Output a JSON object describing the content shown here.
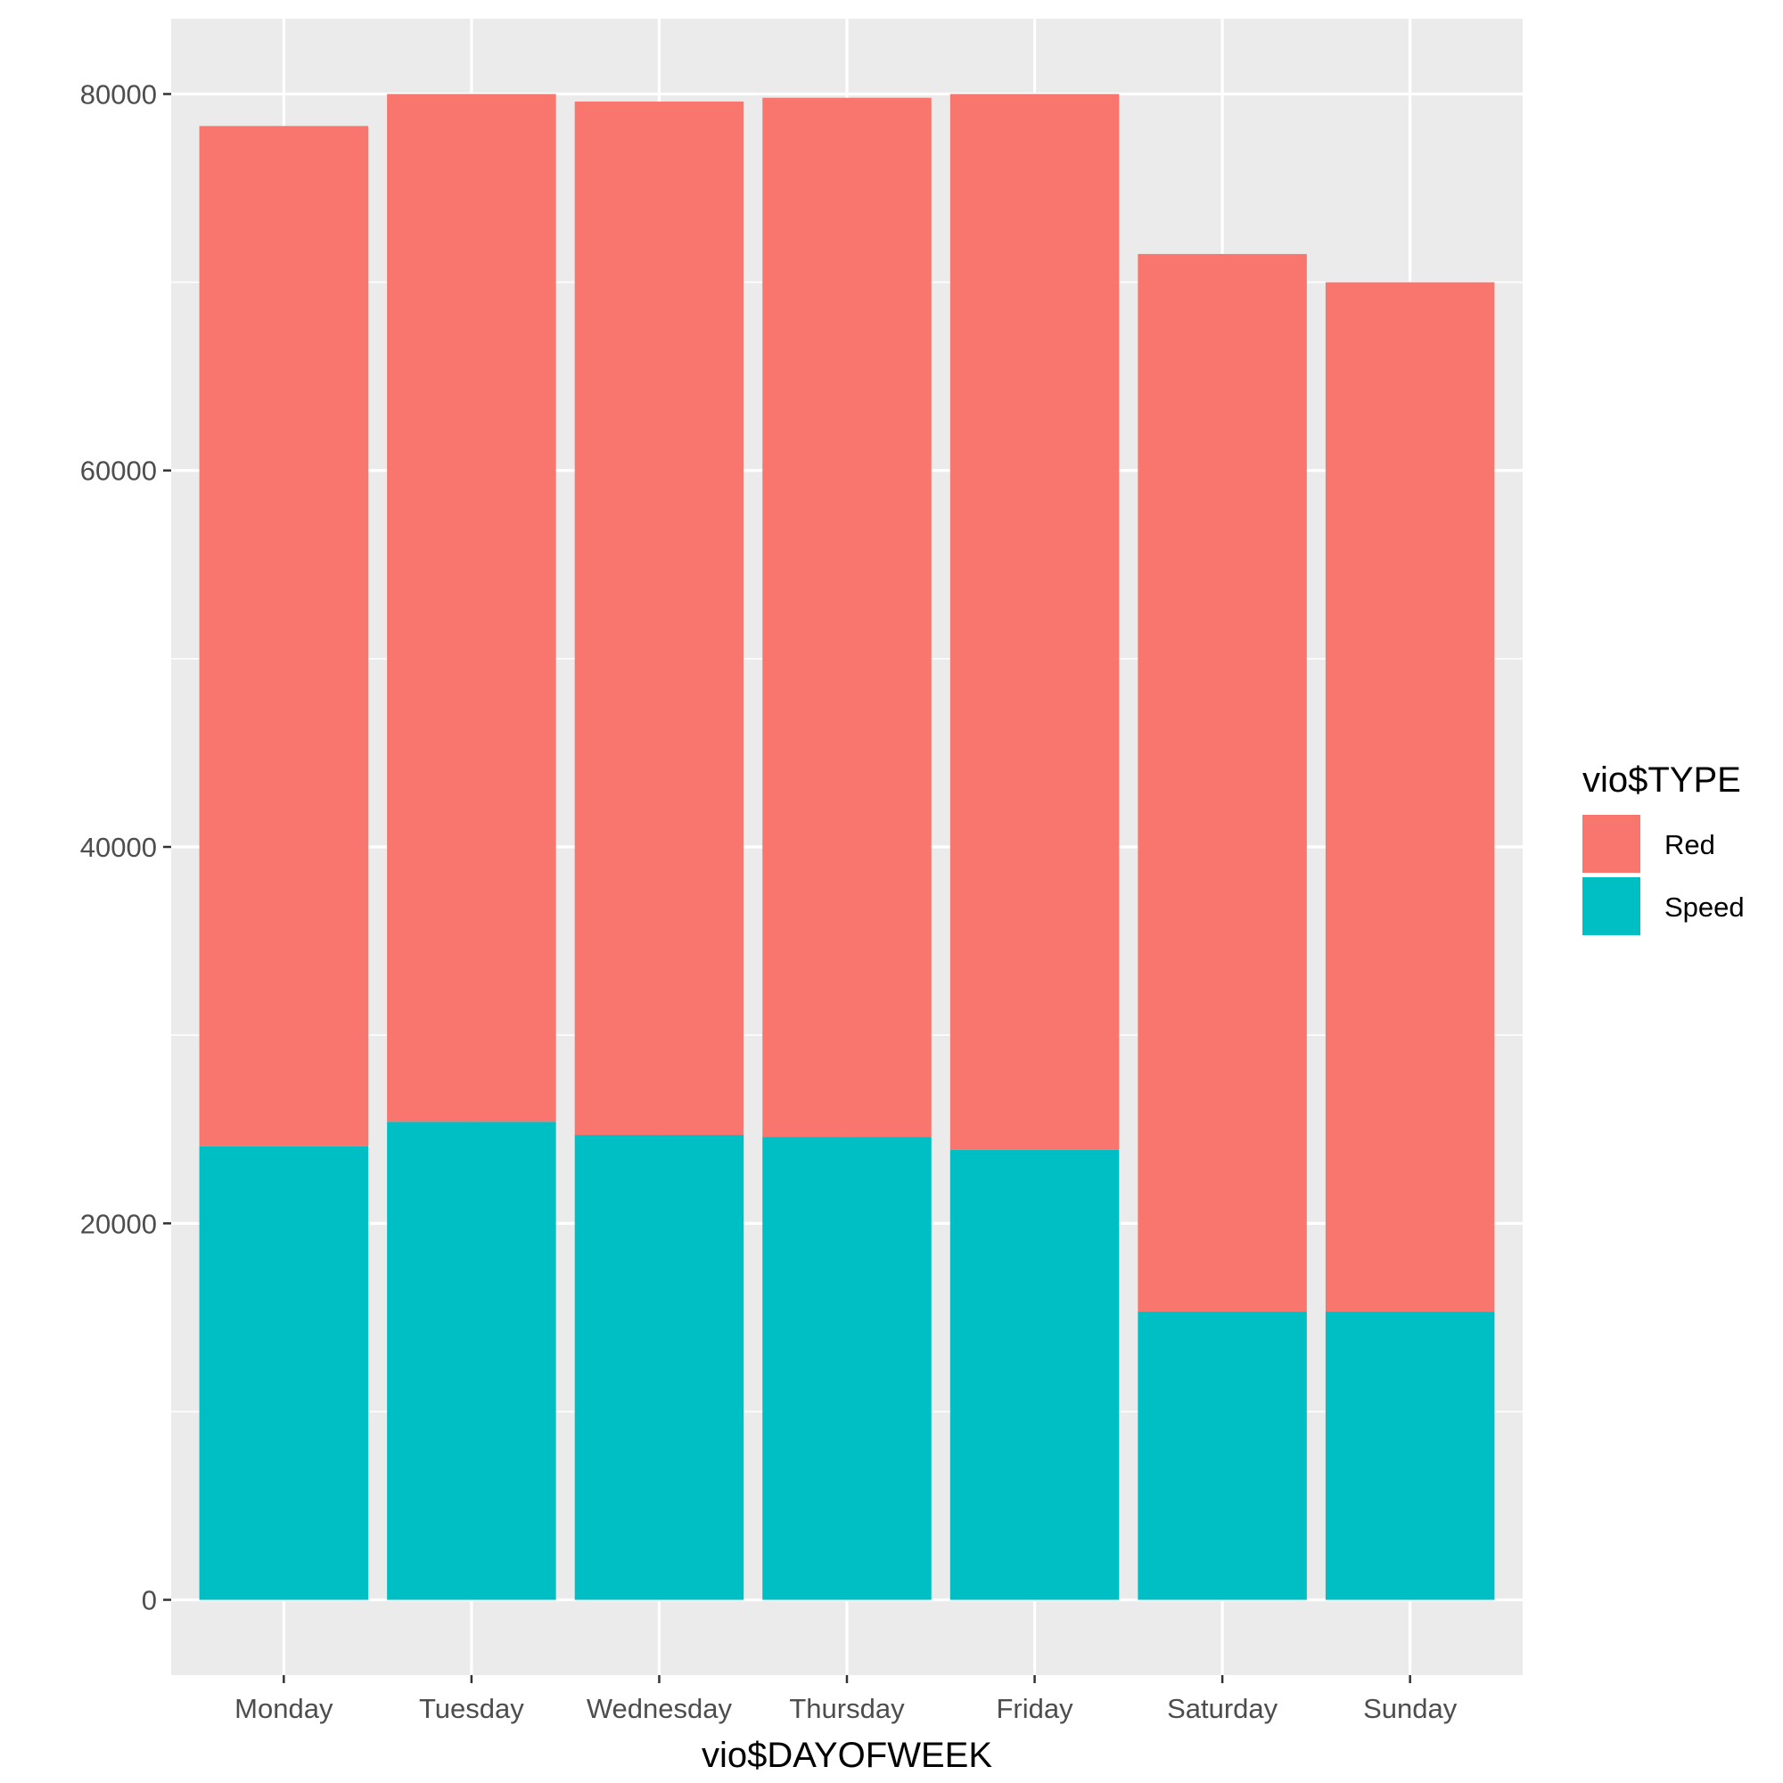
{
  "chart_data": {
    "type": "bar",
    "stacked": true,
    "title": "",
    "xlabel": "vio$DAYOFWEEK",
    "ylabel": "",
    "categories": [
      "Monday",
      "Tuesday",
      "Wednesday",
      "Thursday",
      "Friday",
      "Saturday",
      "Sunday"
    ],
    "series": [
      {
        "name": "Speed",
        "color": "#00BFC4",
        "values": [
          24100,
          25400,
          24700,
          24600,
          23900,
          15300,
          15300
        ]
      },
      {
        "name": "Red",
        "color": "#F8766D",
        "values": [
          54200,
          54600,
          54900,
          55200,
          56100,
          56200,
          54700
        ]
      }
    ],
    "ylim": [
      -4000,
      84000
    ],
    "yticks": [
      0,
      20000,
      40000,
      60000,
      80000
    ],
    "ytick_labels": [
      "0",
      "20000",
      "40000",
      "60000",
      "80000"
    ],
    "legend": {
      "title": "vio$TYPE",
      "entries": [
        "Red",
        "Speed"
      ],
      "position": "right"
    },
    "grid": true,
    "panel_background": "#EBEBEB"
  }
}
